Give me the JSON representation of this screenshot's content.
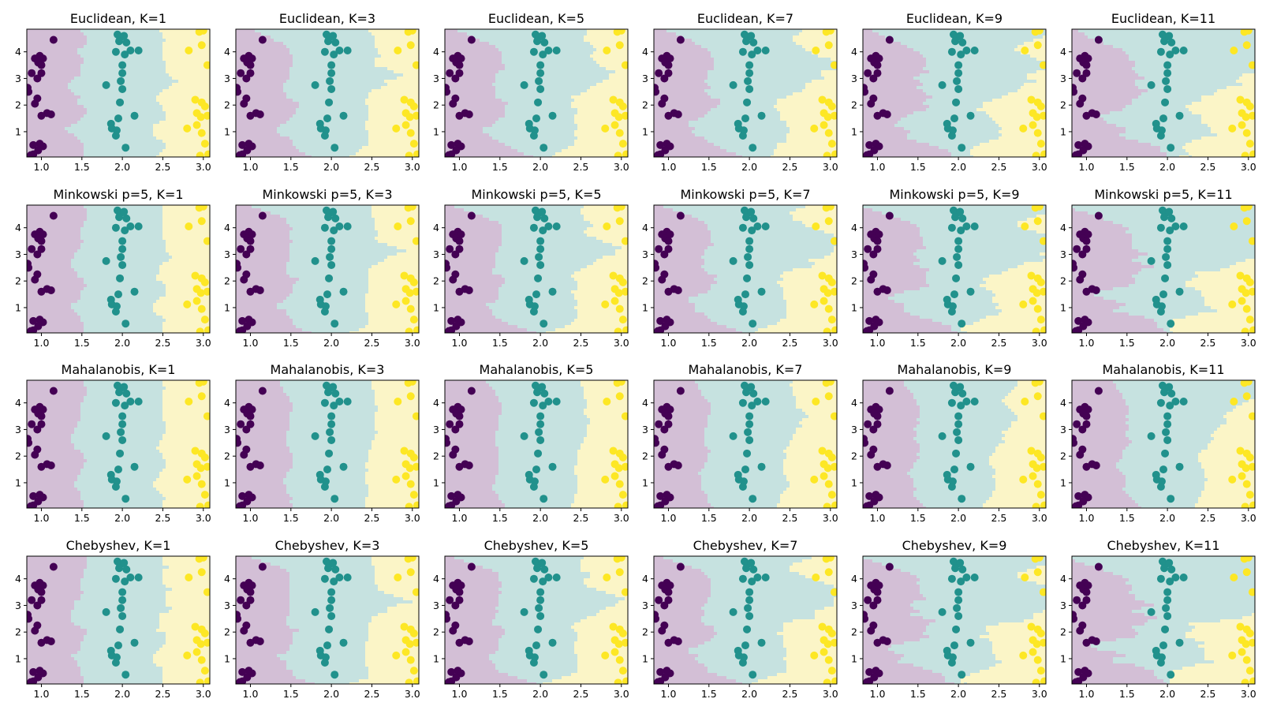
{
  "figure": {
    "rows": 4,
    "cols": 6
  },
  "colors": {
    "class0_region": "#d3bfd6",
    "class1_region": "#c6e2e0",
    "class2_region": "#fbf5c7",
    "class0_point": "#440154",
    "class1_point": "#21918c",
    "class2_point": "#fde725"
  },
  "chart_data": {
    "type": "scatter",
    "subtype": "knn-decision-boundary-grid",
    "xlim": [
      0.82,
      3.08
    ],
    "ylim": [
      0.05,
      4.85
    ],
    "xticks": [
      1.0,
      1.5,
      2.0,
      2.5,
      3.0
    ],
    "yticks": [
      1,
      2,
      3,
      4
    ],
    "xtick_labels": [
      "1.0",
      "1.5",
      "2.0",
      "2.5",
      "3.0"
    ],
    "ytick_labels": [
      "1",
      "2",
      "3",
      "4"
    ],
    "grid": false,
    "points": {
      "class0": [
        [
          1.15,
          4.45
        ],
        [
          0.98,
          3.85
        ],
        [
          0.92,
          3.75
        ],
        [
          1.02,
          3.75
        ],
        [
          0.96,
          3.6
        ],
        [
          1.0,
          3.5
        ],
        [
          0.88,
          3.2
        ],
        [
          1.0,
          3.2
        ],
        [
          0.95,
          3.0
        ],
        [
          0.83,
          2.65
        ],
        [
          0.84,
          2.5
        ],
        [
          0.95,
          2.25
        ],
        [
          0.92,
          2.05
        ],
        [
          1.07,
          1.7
        ],
        [
          1.0,
          1.6
        ],
        [
          1.12,
          1.65
        ],
        [
          0.98,
          0.55
        ],
        [
          0.9,
          0.5
        ],
        [
          1.02,
          0.45
        ],
        [
          0.96,
          0.3
        ],
        [
          0.9,
          0.15
        ],
        [
          0.87,
          0.12
        ]
      ],
      "class1": [
        [
          1.94,
          4.65
        ],
        [
          1.98,
          4.55
        ],
        [
          2.02,
          4.6
        ],
        [
          1.96,
          4.4
        ],
        [
          2.05,
          4.35
        ],
        [
          2.1,
          4.05
        ],
        [
          2.2,
          4.05
        ],
        [
          1.92,
          4.0
        ],
        [
          2.03,
          3.9
        ],
        [
          2.0,
          3.5
        ],
        [
          2.0,
          3.2
        ],
        [
          1.98,
          2.9
        ],
        [
          1.8,
          2.75
        ],
        [
          2.0,
          2.6
        ],
        [
          1.97,
          2.1
        ],
        [
          1.95,
          1.5
        ],
        [
          2.15,
          1.6
        ],
        [
          1.86,
          1.3
        ],
        [
          1.87,
          1.12
        ],
        [
          1.93,
          1.05
        ],
        [
          1.92,
          0.85
        ],
        [
          2.04,
          0.4
        ]
      ],
      "class2": [
        [
          2.95,
          4.75
        ],
        [
          3.0,
          4.8
        ],
        [
          2.98,
          4.25
        ],
        [
          2.82,
          4.05
        ],
        [
          3.05,
          3.5
        ],
        [
          2.9,
          2.2
        ],
        [
          2.98,
          2.1
        ],
        [
          3.02,
          1.95
        ],
        [
          2.92,
          1.7
        ],
        [
          2.97,
          1.55
        ],
        [
          3.05,
          1.6
        ],
        [
          2.8,
          1.12
        ],
        [
          2.92,
          1.25
        ],
        [
          2.98,
          0.95
        ],
        [
          3.02,
          0.55
        ],
        [
          2.96,
          0.1
        ],
        [
          3.06,
          0.15
        ]
      ]
    },
    "panels": [
      {
        "title": "Euclidean, K=1",
        "metric": "euclidean",
        "k": 1
      },
      {
        "title": "Euclidean, K=3",
        "metric": "euclidean",
        "k": 3
      },
      {
        "title": "Euclidean, K=5",
        "metric": "euclidean",
        "k": 5
      },
      {
        "title": "Euclidean, K=7",
        "metric": "euclidean",
        "k": 7
      },
      {
        "title": "Euclidean, K=9",
        "metric": "euclidean",
        "k": 9
      },
      {
        "title": "Euclidean, K=11",
        "metric": "euclidean",
        "k": 11
      },
      {
        "title": "Minkowski p=5, K=1",
        "metric": "minkowski5",
        "k": 1
      },
      {
        "title": "Minkowski p=5, K=3",
        "metric": "minkowski5",
        "k": 3
      },
      {
        "title": "Minkowski p=5, K=5",
        "metric": "minkowski5",
        "k": 5
      },
      {
        "title": "Minkowski p=5, K=7",
        "metric": "minkowski5",
        "k": 7
      },
      {
        "title": "Minkowski p=5, K=9",
        "metric": "minkowski5",
        "k": 9
      },
      {
        "title": "Minkowski p=5, K=11",
        "metric": "minkowski5",
        "k": 11
      },
      {
        "title": "Mahalanobis, K=1",
        "metric": "mahalanobis",
        "k": 1
      },
      {
        "title": "Mahalanobis, K=3",
        "metric": "mahalanobis",
        "k": 3
      },
      {
        "title": "Mahalanobis, K=5",
        "metric": "mahalanobis",
        "k": 5
      },
      {
        "title": "Mahalanobis, K=7",
        "metric": "mahalanobis",
        "k": 7
      },
      {
        "title": "Mahalanobis, K=9",
        "metric": "mahalanobis",
        "k": 9
      },
      {
        "title": "Mahalanobis, K=11",
        "metric": "mahalanobis",
        "k": 11
      },
      {
        "title": "Chebyshev, K=1",
        "metric": "chebyshev",
        "k": 1
      },
      {
        "title": "Chebyshev, K=3",
        "metric": "chebyshev",
        "k": 3
      },
      {
        "title": "Chebyshev, K=5",
        "metric": "chebyshev",
        "k": 5
      },
      {
        "title": "Chebyshev, K=7",
        "metric": "chebyshev",
        "k": 7
      },
      {
        "title": "Chebyshev, K=9",
        "metric": "chebyshev",
        "k": 9
      },
      {
        "title": "Chebyshev, K=11",
        "metric": "chebyshev",
        "k": 11
      }
    ]
  }
}
